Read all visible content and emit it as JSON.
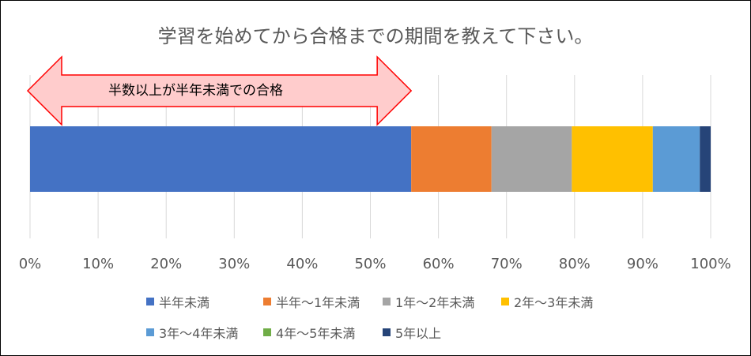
{
  "chart_data": {
    "type": "bar",
    "orientation": "horizontal",
    "stacked": true,
    "percent": true,
    "title": "学習を始めてから合格までの期間を教えて下さい。",
    "xlim": [
      0,
      100
    ],
    "grid": true,
    "legend_position": "bottom",
    "x_ticks": [
      "0%",
      "10%",
      "20%",
      "30%",
      "40%",
      "50%",
      "60%",
      "70%",
      "80%",
      "90%",
      "100%"
    ],
    "series": [
      {
        "name": "半年未満",
        "value": 56,
        "color": "#4472C4"
      },
      {
        "name": "半年～1年未満",
        "value": 11.8,
        "color": "#ED7D31"
      },
      {
        "name": "1年～2年未満",
        "value": 11.8,
        "color": "#A5A5A5"
      },
      {
        "name": "2年～3年未満",
        "value": 11.9,
        "color": "#FFC000"
      },
      {
        "name": "3年～4年未満",
        "value": 6.9,
        "color": "#5B9BD5"
      },
      {
        "name": "4年～5年未満",
        "value": 0,
        "color": "#70AD47"
      },
      {
        "name": "5年以上",
        "value": 1.6,
        "color": "#264478"
      }
    ],
    "annotation": {
      "text": "半数以上が半年未満での合格",
      "range": [
        0,
        56
      ]
    }
  }
}
